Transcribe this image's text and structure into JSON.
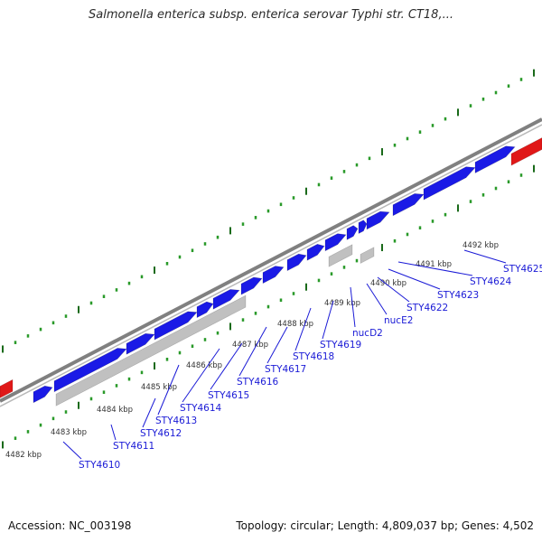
{
  "title": "Salmonella enterica subsp. enterica serovar Typhi str. CT18,...",
  "footer": {
    "accession": "Accession: NC_003198",
    "summary": "Topology: circular; Length: 4,809,037 bp; Genes: 4,502"
  },
  "colors": {
    "cds": "#1a1ae6",
    "rna": "#c0c0c0",
    "highlight": "#e01818",
    "backbone": "#808080",
    "tick_minor": "#2a9a2a",
    "tick_major": "#1a6a1a",
    "label": "#1a1ad6"
  },
  "map": {
    "kbp_marks": [
      "4482 kbp",
      "4483 kbp",
      "4484 kbp",
      "4485 kbp",
      "4486 kbp",
      "4487 kbp",
      "4488 kbp",
      "4489 kbp",
      "4490 kbp",
      "4491 kbp",
      "4492 kbp"
    ],
    "gene_labels": [
      "STY4610",
      "STY4611",
      "STY4612",
      "STY4613",
      "STY4614",
      "STY4615",
      "STY4616",
      "STY4617",
      "STY4618",
      "STY4619",
      "nucD2",
      "nucE2",
      "STY4622",
      "STY4623",
      "STY4624",
      "STY4625"
    ]
  }
}
